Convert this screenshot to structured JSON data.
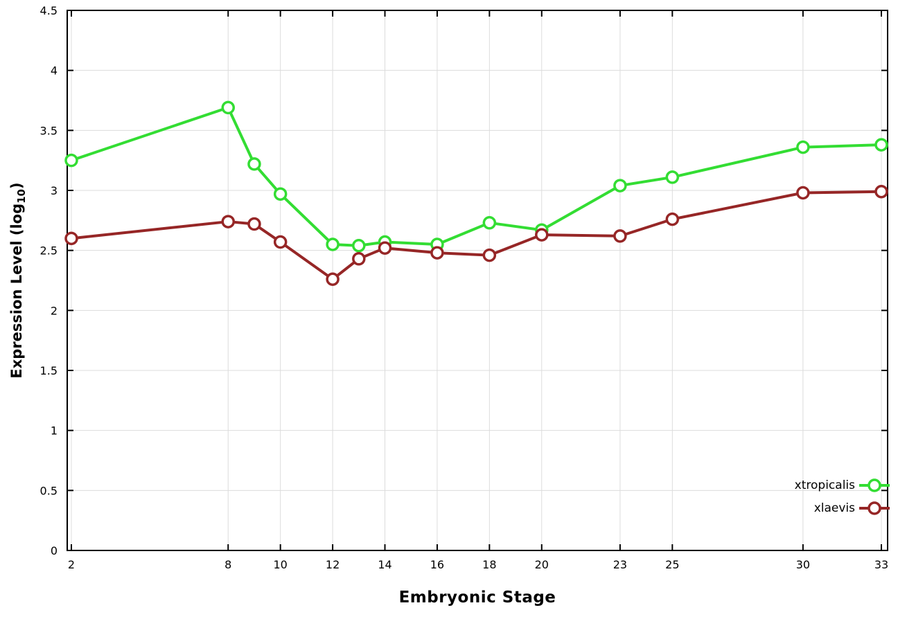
{
  "chart_data": {
    "type": "line",
    "title": "",
    "xlabel": "Embryonic Stage",
    "ylabel": "Expression Level (log10)",
    "ylabel_parts": {
      "main": "Expression Level (log",
      "sub": "10",
      "close": ")"
    },
    "xlim": [
      2,
      33
    ],
    "ylim": [
      0,
      4.5
    ],
    "x_ticks": [
      2,
      8,
      10,
      12,
      14,
      16,
      18,
      20,
      23,
      25,
      30,
      33
    ],
    "y_ticks": [
      0,
      0.5,
      1,
      1.5,
      2,
      2.5,
      3,
      3.5,
      4,
      4.5
    ],
    "grid": true,
    "legend_position": "bottom-right",
    "x": [
      2,
      8,
      9,
      10,
      12,
      13,
      14,
      16,
      18,
      20,
      23,
      25,
      30,
      33
    ],
    "series": [
      {
        "name": "xtropicalis",
        "color": "#33dd33",
        "values": [
          3.25,
          3.69,
          3.22,
          2.97,
          2.55,
          2.54,
          2.57,
          2.55,
          2.73,
          2.67,
          3.04,
          3.11,
          3.36,
          3.38
        ]
      },
      {
        "name": "xlaevis",
        "color": "#962626",
        "values": [
          2.6,
          2.74,
          2.72,
          2.57,
          2.26,
          2.43,
          2.52,
          2.48,
          2.46,
          2.63,
          2.62,
          2.76,
          2.98,
          2.99
        ]
      }
    ],
    "colors": {
      "grid": "#dcdcdc",
      "border": "#000000",
      "tick_text": "#000000"
    }
  }
}
